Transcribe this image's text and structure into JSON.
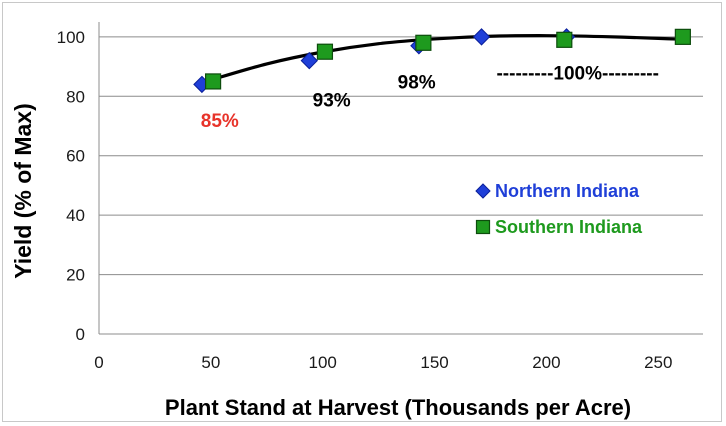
{
  "chart_data": {
    "type": "scatter",
    "title": "",
    "xlabel": "Plant Stand at Harvest (Thousands per Acre)",
    "ylabel": "Yield (% of Max)",
    "xlim": [
      0,
      270
    ],
    "ylim": [
      0,
      105
    ],
    "xticks": [
      0,
      50,
      100,
      150,
      200,
      250
    ],
    "yticks": [
      0,
      20,
      40,
      60,
      80,
      100
    ],
    "grid": "horizontal",
    "legend_position": "right",
    "series": [
      {
        "name": "Northern Indiana",
        "marker": "diamond",
        "color": "#1f3fd8",
        "x": [
          46,
          94,
          143,
          171,
          209
        ],
        "y": [
          84,
          92,
          97,
          100,
          100
        ]
      },
      {
        "name": "Southern Indiana",
        "marker": "square",
        "color": "#1e9a1e",
        "x": [
          51,
          101,
          145,
          208,
          261
        ],
        "y": [
          85,
          95,
          98,
          99,
          100
        ]
      }
    ],
    "trendline": {
      "color": "#000000",
      "x": [
        50,
        75,
        100,
        125,
        150,
        175,
        200,
        225,
        250,
        260
      ],
      "y": [
        85.5,
        90.9,
        94.9,
        97.7,
        99.3,
        100.2,
        100.4,
        100.1,
        99.5,
        99.2
      ]
    },
    "annotations": [
      {
        "text": "85%",
        "x": 54,
        "y": 72,
        "color": "#e8332a"
      },
      {
        "text": "93%",
        "x": 104,
        "y": 79,
        "color": "#000000"
      },
      {
        "text": "98%",
        "x": 142,
        "y": 85,
        "color": "#000000"
      },
      {
        "text": "---------100%---------",
        "x": 214,
        "y": 88,
        "color": "#000000"
      }
    ]
  }
}
